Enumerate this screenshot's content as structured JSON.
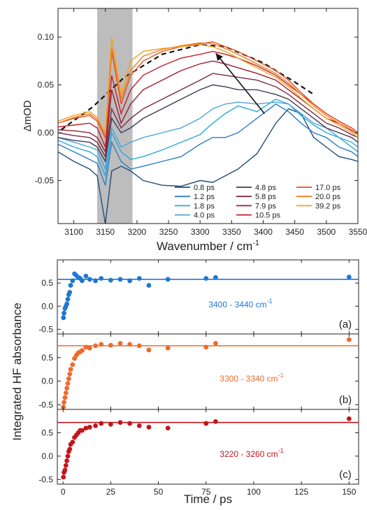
{
  "chart_data": [
    {
      "type": "line",
      "panel": "top",
      "xlabel": "Wavenumber / cm",
      "xlabel_sup": "-1",
      "ylabel": "ΔmOD",
      "xlim": [
        3075,
        3550
      ],
      "ylim": [
        -0.095,
        0.13
      ],
      "xticks": [
        3100,
        3150,
        3200,
        3250,
        3300,
        3350,
        3400,
        3450,
        3500,
        3550
      ],
      "yticks": [
        -0.05,
        0.0,
        0.05,
        0.1
      ],
      "ytick_labels": [
        "-0.05",
        "0.00",
        "0.05",
        "0.10"
      ],
      "shaded_band": [
        3137,
        3193
      ],
      "arrow": {
        "from": [
          3402,
          0.02
        ],
        "to": [
          3325,
          0.083
        ]
      },
      "dashed_guide": {
        "x": [
          3080,
          3130,
          3180,
          3240,
          3300,
          3340,
          3400,
          3450,
          3480
        ],
        "y": [
          0.003,
          0.027,
          0.058,
          0.082,
          0.092,
          0.09,
          0.073,
          0.053,
          0.04
        ]
      },
      "x": [
        3075,
        3100,
        3125,
        3137,
        3150,
        3160,
        3175,
        3190,
        3210,
        3240,
        3270,
        3300,
        3320,
        3340,
        3360,
        3390,
        3420,
        3440,
        3460,
        3480,
        3500,
        3520,
        3540,
        3550
      ],
      "series": [
        {
          "name": "0.8 ps",
          "color": "#1f4e79",
          "values": [
            -0.02,
            -0.03,
            -0.038,
            -0.045,
            -0.095,
            -0.04,
            -0.035,
            -0.04,
            -0.05,
            -0.055,
            -0.056,
            -0.05,
            -0.052,
            -0.045,
            -0.038,
            -0.022,
            0.01,
            0.025,
            0.02,
            -0.005,
            -0.015,
            -0.025,
            -0.028,
            -0.03
          ]
        },
        {
          "name": "1.2 ps",
          "color": "#2b7bc7",
          "values": [
            -0.012,
            -0.02,
            -0.028,
            -0.032,
            -0.055,
            -0.01,
            -0.03,
            -0.038,
            -0.035,
            -0.03,
            -0.025,
            -0.012,
            -0.005,
            -0.005,
            0.0,
            0.015,
            0.03,
            0.022,
            0.01,
            0.0,
            -0.005,
            -0.015,
            -0.02,
            -0.025
          ]
        },
        {
          "name": "1.8 ps",
          "color": "#29a9d9",
          "values": [
            -0.008,
            -0.015,
            -0.02,
            -0.025,
            -0.045,
            0.0,
            -0.02,
            -0.028,
            -0.025,
            -0.018,
            -0.01,
            -0.002,
            0.01,
            0.02,
            0.028,
            0.022,
            0.035,
            0.03,
            0.018,
            0.008,
            0.0,
            -0.005,
            -0.015,
            -0.02
          ]
        },
        {
          "name": "4.0 ps",
          "color": "#4aa6d8",
          "values": [
            -0.005,
            -0.01,
            -0.015,
            -0.018,
            -0.038,
            0.005,
            -0.015,
            -0.01,
            -0.005,
            0.0,
            0.005,
            0.015,
            0.025,
            0.03,
            0.032,
            0.03,
            0.032,
            0.03,
            0.02,
            0.01,
            0.005,
            -0.005,
            -0.01,
            -0.015
          ]
        },
        {
          "name": "4.8 ps",
          "color": "#3f3a5c",
          "values": [
            -0.005,
            -0.008,
            -0.01,
            -0.015,
            -0.03,
            0.015,
            0.0,
            0.005,
            0.015,
            0.025,
            0.035,
            0.045,
            0.05,
            0.048,
            0.045,
            0.045,
            0.04,
            0.035,
            0.025,
            0.015,
            0.005,
            0.0,
            -0.005,
            -0.01
          ]
        },
        {
          "name": "5.8 ps",
          "color": "#7a2a45",
          "values": [
            0.0,
            -0.003,
            -0.005,
            -0.01,
            -0.025,
            0.025,
            0.005,
            0.015,
            0.025,
            0.035,
            0.045,
            0.055,
            0.062,
            0.06,
            0.058,
            0.055,
            0.048,
            0.04,
            0.03,
            0.02,
            0.01,
            0.005,
            -0.002,
            -0.005
          ]
        },
        {
          "name": "7.9 ps",
          "color": "#9b1e2e",
          "values": [
            0.003,
            0.002,
            0.0,
            -0.005,
            -0.02,
            0.045,
            0.01,
            0.03,
            0.045,
            0.055,
            0.065,
            0.072,
            0.075,
            0.072,
            0.068,
            0.062,
            0.055,
            0.045,
            0.035,
            0.025,
            0.015,
            0.01,
            0.002,
            -0.002
          ]
        },
        {
          "name": "10.5 ps",
          "color": "#c0202a",
          "values": [
            0.006,
            0.008,
            0.01,
            0.005,
            -0.015,
            0.06,
            0.02,
            0.045,
            0.06,
            0.07,
            0.078,
            0.082,
            0.085,
            0.082,
            0.078,
            0.07,
            0.06,
            0.05,
            0.04,
            0.03,
            0.02,
            0.012,
            0.005,
            0.0
          ]
        },
        {
          "name": "17.0 ps",
          "color": "#e2501e",
          "values": [
            0.01,
            0.015,
            0.018,
            0.012,
            -0.005,
            0.085,
            0.03,
            0.06,
            0.075,
            0.085,
            0.09,
            0.093,
            0.095,
            0.09,
            0.085,
            0.075,
            0.065,
            0.055,
            0.042,
            0.03,
            0.02,
            0.012,
            0.005,
            0.0
          ]
        },
        {
          "name": "20.0 ps",
          "color": "#f07d28",
          "values": [
            0.01,
            0.016,
            0.02,
            0.014,
            -0.002,
            0.09,
            0.035,
            0.065,
            0.08,
            0.087,
            0.091,
            0.094,
            0.093,
            0.088,
            0.082,
            0.072,
            0.062,
            0.052,
            0.04,
            0.028,
            0.018,
            0.01,
            0.003,
            -0.002
          ]
        },
        {
          "name": "39.2 ps",
          "color": "#f2a21a",
          "values": [
            0.012,
            0.018,
            0.022,
            0.016,
            0.0,
            0.1,
            0.04,
            0.075,
            0.085,
            0.088,
            0.09,
            0.092,
            0.09,
            0.085,
            0.078,
            0.068,
            0.058,
            0.048,
            0.036,
            0.025,
            0.015,
            0.008,
            0.0,
            -0.005
          ]
        }
      ]
    },
    {
      "type": "scatter",
      "panel": "a",
      "label": "(a)",
      "range_label": "3400 - 3440 cm",
      "range_sup": "-1",
      "color": "#1f77d4",
      "xlim": [
        -3,
        155
      ],
      "ylim": [
        -0.6,
        1.0
      ],
      "yticks": [
        -0.5,
        0.0,
        0.5
      ],
      "fit_y": 0.58,
      "x": [
        0.2,
        0.5,
        1,
        1.5,
        2,
        2.5,
        3,
        3.5,
        4,
        5,
        6,
        7,
        8,
        9,
        10,
        12,
        14,
        17,
        20,
        25,
        30,
        35,
        40,
        45,
        55,
        75,
        80,
        150
      ],
      "y": [
        -0.25,
        -0.15,
        -0.05,
        0.0,
        0.05,
        0.15,
        0.25,
        0.3,
        0.45,
        0.55,
        0.7,
        0.66,
        0.62,
        0.6,
        0.55,
        0.65,
        0.58,
        0.55,
        0.6,
        0.56,
        0.58,
        0.55,
        0.6,
        0.45,
        0.58,
        0.6,
        0.62,
        0.63
      ]
    },
    {
      "type": "scatter",
      "panel": "b",
      "label": "(b)",
      "range_label": "3300 - 3340 cm",
      "range_sup": "-1",
      "color": "#f06a2a",
      "xlim": [
        -3,
        155
      ],
      "ylim": [
        -0.6,
        1.0
      ],
      "yticks": [
        -0.5,
        0.0,
        0.5
      ],
      "fit_y": 0.75,
      "x": [
        0.2,
        0.5,
        1,
        1.5,
        2,
        2.5,
        3,
        3.5,
        4,
        5,
        6,
        7,
        8,
        9,
        10,
        12,
        14,
        17,
        20,
        25,
        30,
        35,
        40,
        45,
        55,
        75,
        80,
        150
      ],
      "y": [
        -0.55,
        -0.45,
        -0.35,
        -0.25,
        -0.15,
        -0.05,
        0.05,
        0.15,
        0.25,
        0.35,
        0.48,
        0.55,
        0.6,
        0.62,
        0.65,
        0.72,
        0.7,
        0.75,
        0.78,
        0.76,
        0.8,
        0.78,
        0.75,
        0.66,
        0.7,
        0.72,
        0.8,
        0.88
      ]
    },
    {
      "type": "scatter",
      "panel": "c",
      "label": "(c)",
      "range_label": "3220 - 3260 cm",
      "range_sup": "-1",
      "color": "#c3161c",
      "xlim": [
        -3,
        155
      ],
      "ylim": [
        -0.6,
        1.0
      ],
      "yticks": [
        -0.5,
        0.0,
        0.5
      ],
      "xticks": [
        0,
        25,
        50,
        75,
        100,
        125,
        150
      ],
      "xlabel": "Time / ps",
      "fit_y": 0.72,
      "x": [
        0.2,
        0.5,
        1,
        1.5,
        2,
        2.5,
        3,
        3.5,
        4,
        5,
        6,
        7,
        8,
        9,
        10,
        12,
        14,
        17,
        20,
        25,
        30,
        35,
        40,
        45,
        55,
        75,
        80,
        150
      ],
      "y": [
        -0.45,
        -0.35,
        -0.3,
        -0.2,
        -0.1,
        0.0,
        0.1,
        0.15,
        0.25,
        0.3,
        0.4,
        0.45,
        0.5,
        0.55,
        0.55,
        0.6,
        0.62,
        0.65,
        0.7,
        0.68,
        0.72,
        0.7,
        0.65,
        0.62,
        0.6,
        0.7,
        0.74,
        0.8
      ]
    }
  ],
  "shared_ylabel": "Integrated HF absorbance"
}
